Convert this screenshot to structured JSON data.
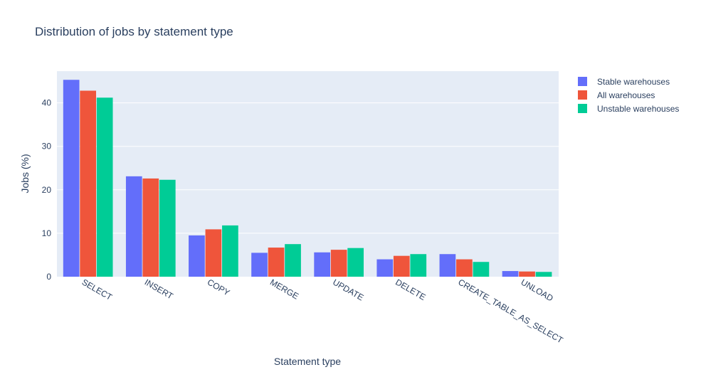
{
  "chart_data": {
    "type": "bar",
    "title": "Distribution of jobs by statement type",
    "xlabel": "Statement type",
    "ylabel": "Jobs (%)",
    "ylim": [
      0,
      47.3
    ],
    "yticks": [
      0,
      10,
      20,
      30,
      40
    ],
    "grid": true,
    "legend_position": "top-right",
    "categories": [
      "SELECT",
      "INSERT",
      "COPY",
      "MERGE",
      "UPDATE",
      "DELETE",
      "CREATE_TABLE_AS_SELECT",
      "UNLOAD"
    ],
    "series": [
      {
        "name": "Stable warehouses",
        "color": "#636efa",
        "values": [
          45.3,
          23.1,
          9.5,
          5.5,
          5.6,
          4.0,
          5.2,
          1.3
        ]
      },
      {
        "name": "All warehouses",
        "color": "#ef553b",
        "values": [
          42.8,
          22.6,
          10.9,
          6.7,
          6.2,
          4.8,
          4.0,
          1.2
        ]
      },
      {
        "name": "Unstable warehouses",
        "color": "#00cc96",
        "values": [
          41.2,
          22.3,
          11.8,
          7.5,
          6.6,
          5.2,
          3.4,
          1.1
        ]
      }
    ]
  },
  "colors": {
    "plot_background": "#e5ecf6",
    "grid": "#ffffff",
    "text": "#2a3f5f"
  }
}
